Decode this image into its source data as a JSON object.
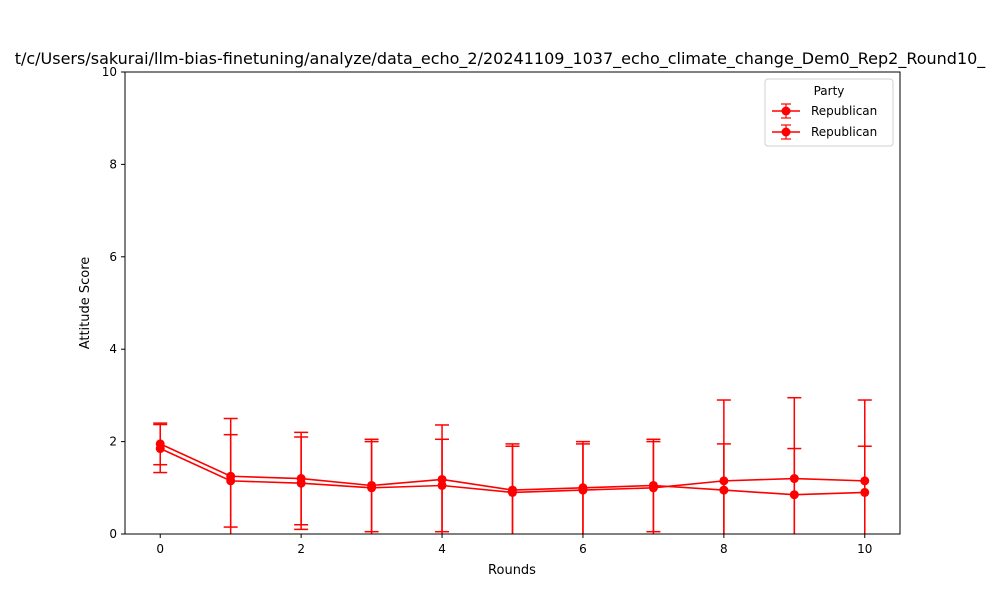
{
  "chart_data": {
    "type": "line",
    "title": "t/c/Users/sakurai/llm-bias-finetuning/analyze/data_echo_2/20241109_1037_echo_climate_change_Dem0_Rep2_Round10_",
    "xlabel": "Rounds",
    "ylabel": "Attitude Score",
    "xlim": [
      -0.5,
      10.5
    ],
    "ylim": [
      0,
      10
    ],
    "xticks": [
      0,
      2,
      4,
      6,
      8,
      10
    ],
    "yticks": [
      0,
      2,
      4,
      6,
      8,
      10
    ],
    "grid": false,
    "legend": {
      "title": "Party",
      "placement": "top-right"
    },
    "x": [
      0,
      1,
      2,
      3,
      4,
      5,
      6,
      7,
      8,
      9,
      10
    ],
    "series": [
      {
        "name": "Republican",
        "color": "#ff0000",
        "values": [
          1.85,
          1.15,
          1.1,
          1.0,
          1.05,
          0.9,
          0.95,
          1.0,
          1.15,
          1.2,
          1.15
        ],
        "err": [
          0.52,
          1.0,
          1.0,
          1.0,
          1.0,
          1.0,
          1.0,
          1.0,
          1.75,
          1.75,
          1.75
        ]
      },
      {
        "name": "Republican",
        "color": "#ff0000",
        "values": [
          1.95,
          1.25,
          1.2,
          1.05,
          1.18,
          0.95,
          1.0,
          1.05,
          0.95,
          0.85,
          0.9
        ],
        "err": [
          0.45,
          1.25,
          1.0,
          1.0,
          1.18,
          1.0,
          1.0,
          1.0,
          1.0,
          1.0,
          1.0
        ]
      }
    ]
  }
}
